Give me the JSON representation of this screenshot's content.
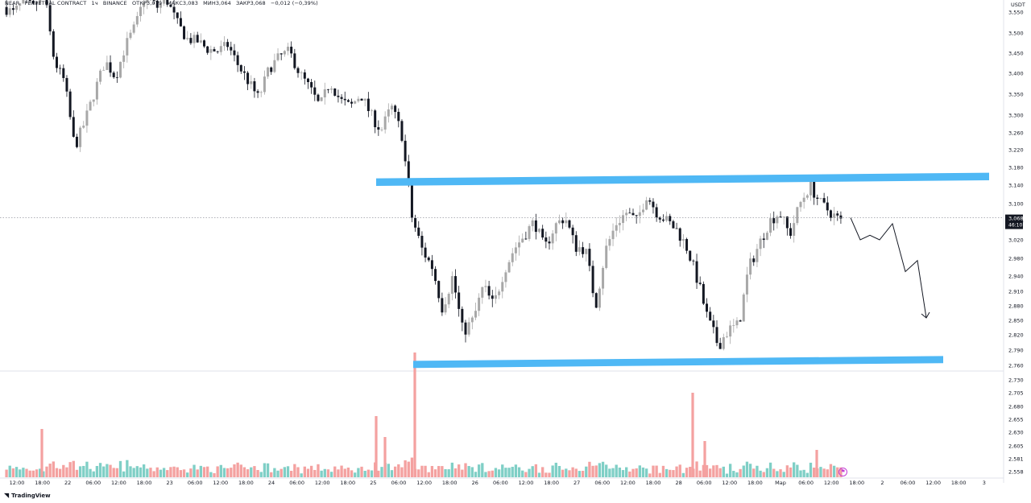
{
  "header": {
    "symbol": "NEAR",
    "contract": "PERPETUAL CONTRACT",
    "timeframe": "1ч",
    "exchange": "BINANCE",
    "open": "ОТКР3,079",
    "high": "МАКС3,083",
    "low": "МИН3,064",
    "close": "ЗАКР3,068",
    "change": "−0,012 (−0,39%)"
  },
  "currency": "USDT",
  "brand": {
    "name": "TradingView",
    "logo_icon": "tv-logo-icon"
  },
  "colors": {
    "up": "#a8a8a8",
    "down": "#131722",
    "zone": "#4fb8f5",
    "vol_up": "#7fcfc6",
    "vol_down": "#f4a1a0",
    "flag": "#c33fd6"
  },
  "chart_data": {
    "type": "candlestick",
    "title": "",
    "last_price": "3,068",
    "countdown": "46:10",
    "y_ticks": [
      "3,550",
      "3,500",
      "3,450",
      "3,400",
      "3,350",
      "3,300",
      "3,260",
      "3,220",
      "3,180",
      "3,140",
      "3,100",
      "3,060",
      "3,020",
      "2,980",
      "2,940",
      "2,910",
      "2,880",
      "2,850",
      "2,820",
      "2,790",
      "2,760",
      "2,730",
      "2,705",
      "2,680",
      "2,655",
      "2,630",
      "2,605",
      "2,581",
      "2,558"
    ],
    "x_ticks": [
      "12:00",
      "18:00",
      "22",
      "06:00",
      "12:00",
      "18:00",
      "23",
      "06:00",
      "12:00",
      "18:00",
      "24",
      "06:00",
      "12:00",
      "18:00",
      "25",
      "06:00",
      "12:00",
      "18:00",
      "26",
      "06:00",
      "12:00",
      "18:00",
      "27",
      "06:00",
      "12:00",
      "18:00",
      "28",
      "06:00",
      "12:00",
      "18:00",
      "Мар",
      "06:00",
      "12:00",
      "18:00",
      "2",
      "06:00",
      "12:00",
      "18:00",
      "3"
    ],
    "resistance_zone": [
      3.14,
      3.157
    ],
    "support_zone": [
      2.758,
      2.772
    ],
    "price_path": [
      3.562,
      3.548,
      3.575,
      3.56,
      3.6,
      3.43,
      3.38,
      3.225,
      3.285,
      3.36,
      3.43,
      3.39,
      3.47,
      3.52,
      3.6,
      3.56,
      3.58,
      3.525,
      3.485,
      3.48,
      3.46,
      3.455,
      3.47,
      3.42,
      3.38,
      3.34,
      3.41,
      3.44,
      3.455,
      3.4,
      3.365,
      3.32,
      3.38,
      3.335,
      3.32,
      3.35,
      3.3,
      3.265,
      3.32,
      3.26,
      3.07,
      3.0,
      2.96,
      2.875,
      2.94,
      2.825,
      2.85,
      2.92,
      2.88,
      2.95,
      3.0,
      3.03,
      3.06,
      3.0,
      3.05,
      3.07,
      3.005,
      3.0,
      2.88,
      3.0,
      3.055,
      3.08,
      3.06,
      3.12,
      3.08,
      3.06,
      3.04,
      3.0,
      2.93,
      2.85,
      2.8,
      2.83,
      2.84,
      2.96,
      3.01,
      3.06,
      3.08,
      3.03,
      3.1,
      3.14,
      3.1,
      3.08,
      3.06
    ],
    "forecast_path": [
      3.068,
      3.02,
      3.03,
      3.02,
      3.055,
      2.95,
      2.975,
      2.855
    ],
    "volume_spikes": [
      "25 (~06:00-09:00)",
      "28 (~03:00)"
    ]
  }
}
